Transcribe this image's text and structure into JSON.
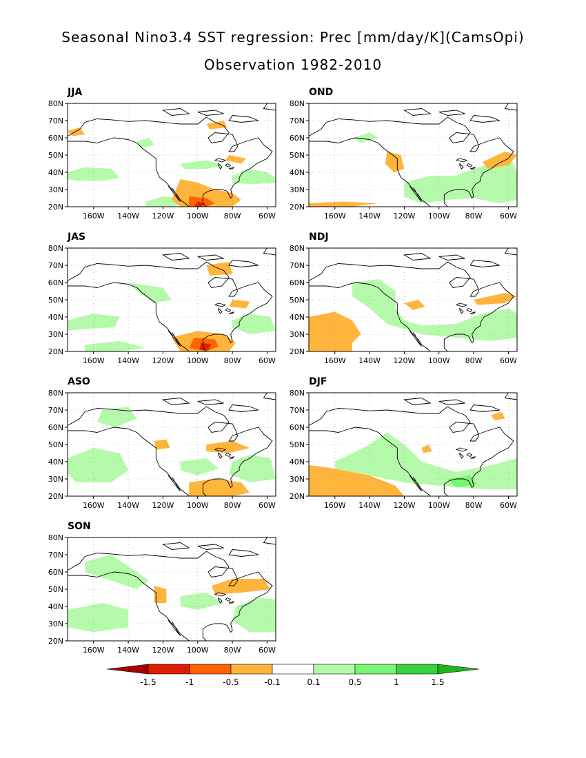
{
  "title_line1": "Seasonal Nino3.4 SST regression: Prec [mm/day/K](CamsOpi)",
  "title_line2": "Observation 1982-2010",
  "lat_labels": [
    "80N",
    "70N",
    "60N",
    "50N",
    "40N",
    "30N",
    "20N"
  ],
  "lon_labels": [
    "160W",
    "140W",
    "120W",
    "100W",
    "80W",
    "60W"
  ],
  "panels": [
    {
      "label": "JJA",
      "dominant": "mixed"
    },
    {
      "label": "OND",
      "dominant": "positive"
    },
    {
      "label": "JAS",
      "dominant": "mixed"
    },
    {
      "label": "NDJ",
      "dominant": "mixed"
    },
    {
      "label": "ASO",
      "dominant": "mixed"
    },
    {
      "label": "DJF",
      "dominant": "mixed"
    },
    {
      "label": "SON",
      "dominant": "mixed"
    }
  ],
  "colorbar": {
    "labels": [
      "-1.5",
      "-1",
      "-0.5",
      "-0.1",
      "0.1",
      "0.5",
      "1",
      "1.5"
    ],
    "colors": [
      "#a50000",
      "#dc1e00",
      "#ff6400",
      "#ffb43c",
      "#ffffff",
      "#b4faaa",
      "#78f573",
      "#37d23c",
      "#1eb41e"
    ]
  }
}
